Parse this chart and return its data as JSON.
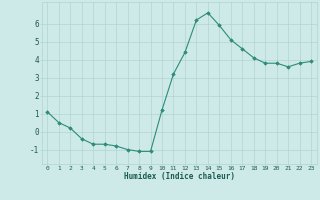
{
  "x": [
    0,
    1,
    2,
    3,
    4,
    5,
    6,
    7,
    8,
    9,
    10,
    11,
    12,
    13,
    14,
    15,
    16,
    17,
    18,
    19,
    20,
    21,
    22,
    23
  ],
  "y": [
    1.1,
    0.5,
    0.2,
    -0.4,
    -0.7,
    -0.7,
    -0.8,
    -1.0,
    -1.1,
    -1.1,
    1.2,
    3.2,
    4.4,
    6.2,
    6.6,
    5.9,
    5.1,
    4.6,
    4.1,
    3.8,
    3.8,
    3.6,
    3.8,
    3.9
  ],
  "line_color": "#2e8b7a",
  "marker": "D",
  "markersize": 1.8,
  "linewidth": 0.8,
  "xlabel": "Humidex (Indice chaleur)",
  "ylim": [
    -1.8,
    7.2
  ],
  "yticks": [
    -1,
    0,
    1,
    2,
    3,
    4,
    5,
    6
  ],
  "xticks": [
    0,
    1,
    2,
    3,
    4,
    5,
    6,
    7,
    8,
    9,
    10,
    11,
    12,
    13,
    14,
    15,
    16,
    17,
    18,
    19,
    20,
    21,
    22,
    23
  ],
  "bg_color": "#ceeae8",
  "grid_color": "#b0d4d0",
  "text_color": "#1a5a52"
}
